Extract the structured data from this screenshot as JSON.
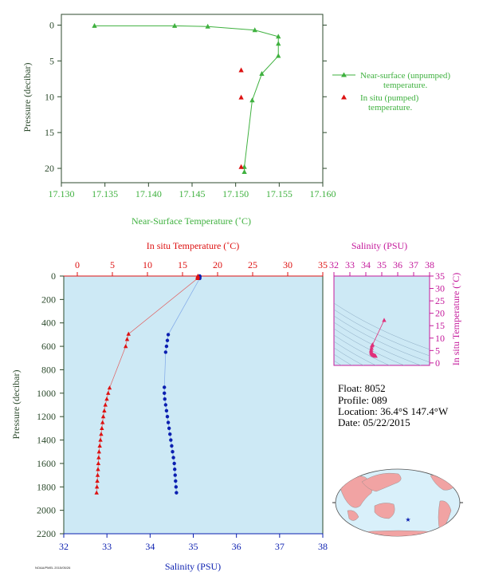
{
  "colors": {
    "green": "#3fb13f",
    "dark_green": "#2c4a2c",
    "red": "#dd1111",
    "blue": "#0b1fb0",
    "magenta": "#c4199b",
    "pink": "#e0307a",
    "plot_bg": "#cde9f5",
    "land": "#f1a3a3",
    "ocean": "#d9f0fa"
  },
  "info": {
    "float_label": "Float:",
    "float_value": "8052",
    "profile_label": "Profile:",
    "profile_value": "089",
    "location_label": "Location:",
    "location_value": "36.4°S  147.4°W",
    "date_label": "Date:",
    "date_value": "05/22/2015"
  },
  "footer": {
    "tiny_text": "NOAA/PMEL 2015/05/26"
  },
  "chart_data": [
    {
      "type": "line",
      "xlabel": "Near-Surface Temperature (˚C)",
      "ylabel": "Pressure (decibar)",
      "xlim": [
        17.13,
        17.16
      ],
      "ylim": [
        22,
        -1.5
      ],
      "x_ticks": [
        "17.130",
        "17.135",
        "17.140",
        "17.145",
        "17.150",
        "17.155",
        "17.160"
      ],
      "x_tick_values": [
        17.13,
        17.135,
        17.14,
        17.145,
        17.15,
        17.155,
        17.16
      ],
      "y_ticks": [
        "0",
        "5",
        "10",
        "15",
        "20"
      ],
      "y_tick_values": [
        0,
        5,
        10,
        15,
        20
      ],
      "legend_position": "right",
      "series": [
        {
          "name": "Near-surface (unpumped) temperature.",
          "legend_line1": "Near-surface (unpumped)",
          "legend_line2": "temperature.",
          "marker": "triangle",
          "connected": true,
          "points": [
            [
              17.1338,
              0.1
            ],
            [
              17.143,
              0.1
            ],
            [
              17.1468,
              0.2
            ],
            [
              17.1522,
              0.7
            ],
            [
              17.1549,
              1.6
            ],
            [
              17.1549,
              2.6
            ],
            [
              17.1549,
              4.3
            ],
            [
              17.153,
              6.8
            ],
            [
              17.1519,
              10.5
            ],
            [
              17.151,
              19.8
            ],
            [
              17.151,
              20.5
            ]
          ]
        },
        {
          "name": "In situ (pumped) temperature.",
          "legend_line1": "In situ (pumped)",
          "legend_line2": "temperature.",
          "marker": "triangle",
          "connected": false,
          "points": [
            [
              17.151,
              6.3
            ],
            [
              17.151,
              10.1
            ],
            [
              17.151,
              19.8
            ]
          ]
        }
      ]
    },
    {
      "type": "scatter",
      "xlabel_top": "In situ Temperature (˚C)",
      "xlabel_bottom": "Salinity (PSU)",
      "ylabel": "Pressure (decibar)",
      "temperature_xlim": [
        -2,
        35
      ],
      "salinity_xlim": [
        32,
        38
      ],
      "ylim": [
        2200,
        0
      ],
      "temperature_ticks": [
        "0",
        "5",
        "10",
        "15",
        "20",
        "25",
        "30",
        "35"
      ],
      "temperature_tick_values": [
        0,
        5,
        10,
        15,
        20,
        25,
        30,
        35
      ],
      "salinity_ticks": [
        "32",
        "33",
        "34",
        "35",
        "36",
        "37",
        "38"
      ],
      "salinity_tick_values": [
        32,
        33,
        34,
        35,
        36,
        37,
        38
      ],
      "y_ticks": [
        "0",
        "200",
        "400",
        "600",
        "800",
        "1000",
        "1200",
        "1400",
        "1600",
        "1800",
        "2000",
        "2200"
      ],
      "y_tick_values": [
        0,
        200,
        400,
        600,
        800,
        1000,
        1200,
        1400,
        1600,
        1800,
        2000,
        2200
      ],
      "temperature_points": [
        [
          17.2,
          0
        ],
        [
          17.15,
          5
        ],
        [
          17.15,
          10
        ],
        [
          17.15,
          20
        ],
        [
          7.3,
          495
        ],
        [
          7.1,
          540
        ],
        [
          6.9,
          600
        ],
        [
          4.6,
          955
        ],
        [
          4.4,
          1000
        ],
        [
          4.2,
          1050
        ],
        [
          4.0,
          1100
        ],
        [
          3.85,
          1150
        ],
        [
          3.7,
          1200
        ],
        [
          3.6,
          1250
        ],
        [
          3.5,
          1300
        ],
        [
          3.4,
          1350
        ],
        [
          3.3,
          1400
        ],
        [
          3.2,
          1450
        ],
        [
          3.1,
          1500
        ],
        [
          3.05,
          1550
        ],
        [
          3.0,
          1600
        ],
        [
          2.95,
          1650
        ],
        [
          2.9,
          1700
        ],
        [
          2.85,
          1750
        ],
        [
          2.8,
          1800
        ],
        [
          2.75,
          1850
        ]
      ],
      "salinity_points": [
        [
          35.15,
          0
        ],
        [
          35.15,
          5
        ],
        [
          35.15,
          10
        ],
        [
          35.15,
          20
        ],
        [
          34.42,
          500
        ],
        [
          34.4,
          550
        ],
        [
          34.38,
          600
        ],
        [
          34.36,
          650
        ],
        [
          34.33,
          950
        ],
        [
          34.33,
          1000
        ],
        [
          34.34,
          1050
        ],
        [
          34.36,
          1100
        ],
        [
          34.38,
          1150
        ],
        [
          34.4,
          1200
        ],
        [
          34.42,
          1250
        ],
        [
          34.44,
          1300
        ],
        [
          34.46,
          1350
        ],
        [
          34.48,
          1400
        ],
        [
          34.5,
          1450
        ],
        [
          34.52,
          1500
        ],
        [
          34.54,
          1550
        ],
        [
          34.56,
          1600
        ],
        [
          34.57,
          1650
        ],
        [
          34.58,
          1700
        ],
        [
          34.59,
          1750
        ],
        [
          34.6,
          1800
        ],
        [
          34.61,
          1850
        ]
      ]
    },
    {
      "type": "scatter",
      "xlabel": "Salinity (PSU)",
      "ylabel": "In situ Temperature (˚C)",
      "xlim": [
        32,
        38
      ],
      "ylim": [
        -1,
        35
      ],
      "x_ticks": [
        "32",
        "33",
        "34",
        "35",
        "36",
        "37",
        "38"
      ],
      "x_tick_values": [
        32,
        33,
        34,
        35,
        36,
        37,
        38
      ],
      "y_ticks": [
        "0",
        "5",
        "10",
        "15",
        "20",
        "25",
        "30",
        "35"
      ],
      "y_tick_values": [
        0,
        5,
        10,
        15,
        20,
        25,
        30,
        35
      ],
      "points": [
        [
          35.15,
          17.2
        ],
        [
          34.42,
          7.3
        ],
        [
          34.38,
          6.9
        ],
        [
          34.36,
          6.0
        ],
        [
          34.34,
          5.2
        ],
        [
          34.33,
          4.6
        ],
        [
          34.35,
          4.0
        ],
        [
          34.38,
          3.7
        ],
        [
          34.42,
          3.4
        ],
        [
          34.46,
          3.2
        ],
        [
          34.5,
          3.05
        ],
        [
          34.54,
          2.95
        ],
        [
          34.58,
          2.85
        ],
        [
          34.61,
          2.75
        ]
      ]
    }
  ]
}
